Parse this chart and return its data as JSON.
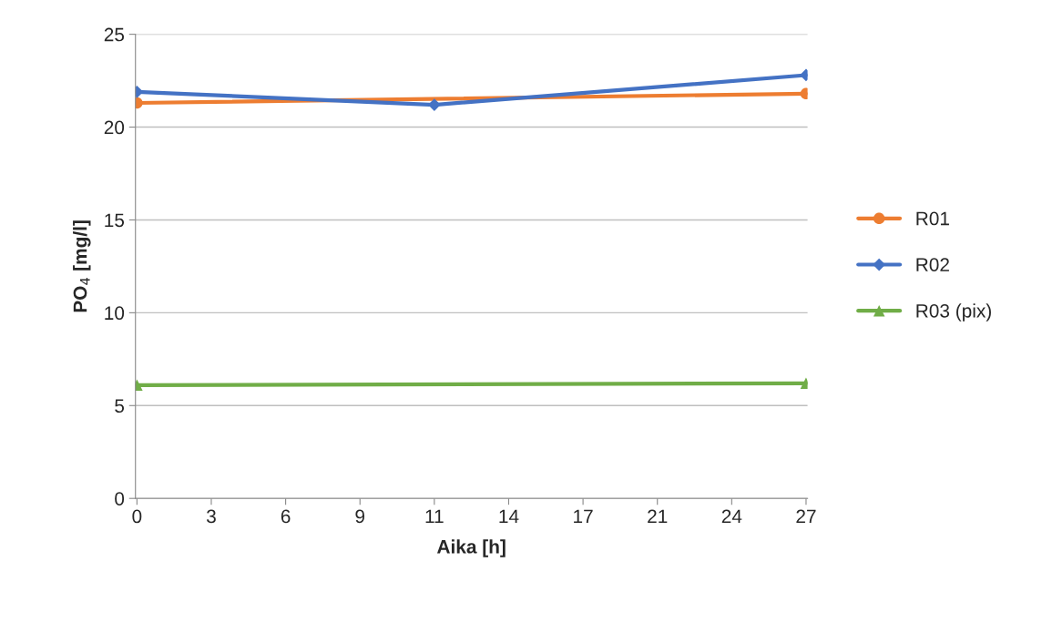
{
  "chart_data": {
    "type": "line",
    "xlabel": "Aika [h]",
    "ylabel": "PO$_{4}$ [mg/l]",
    "categories": [
      "0",
      "3",
      "6",
      "9",
      "11",
      "14",
      "17",
      "21",
      "24",
      "27"
    ],
    "series": [
      {
        "name": "R01",
        "color": "#ed7d31",
        "marker": "circle",
        "values": [
          21.3,
          null,
          null,
          null,
          null,
          null,
          null,
          null,
          null,
          21.8
        ]
      },
      {
        "name": "R02",
        "color": "#4472c4",
        "marker": "diamond",
        "values": [
          21.9,
          null,
          null,
          null,
          21.2,
          null,
          null,
          null,
          null,
          22.8
        ]
      },
      {
        "name": "R03 (pix)",
        "color": "#70ad47",
        "marker": "triangle",
        "values": [
          6.1,
          null,
          null,
          null,
          null,
          null,
          null,
          null,
          null,
          6.2
        ]
      }
    ],
    "ylim": [
      0,
      25
    ],
    "yticks": [
      0,
      5,
      10,
      15,
      20,
      25
    ],
    "grid": "y",
    "legend": "right"
  }
}
